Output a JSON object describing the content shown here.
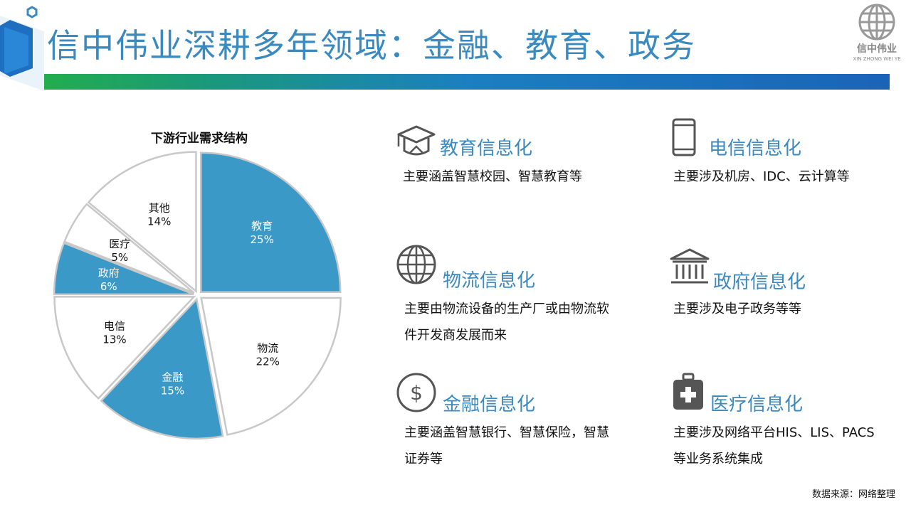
{
  "header": {
    "title": "信中伟业深耕多年领域：金融、教育、政务",
    "brand_name": "信中伟业",
    "brand_sub": "XIN ZHONG WEI YE"
  },
  "chart_data": {
    "type": "pie",
    "title": "下游行业需求结构",
    "categories": [
      "教育",
      "物流",
      "金融",
      "电信",
      "政府",
      "医疗",
      "其他"
    ],
    "values": [
      25,
      22,
      15,
      13,
      6,
      5,
      14
    ],
    "value_labels": [
      "25%",
      "22%",
      "15%",
      "13%",
      "6%",
      "5%",
      "14%"
    ],
    "colors": [
      "#3b99c7",
      "#ffffff",
      "#3b99c7",
      "#ffffff",
      "#3b99c7",
      "#ffffff",
      "#ffffff"
    ],
    "label_colors": [
      "#ffffff",
      "#111111",
      "#ffffff",
      "#111111",
      "#ffffff",
      "#111111",
      "#111111"
    ],
    "exploded": true,
    "start_angle": "12 o'clock, clockwise"
  },
  "features": [
    {
      "key": "education",
      "title": "教育信息化",
      "desc": [
        "主要涵盖智慧校园、智慧教育等"
      ],
      "icon": "graduation-cap-icon"
    },
    {
      "key": "telecom",
      "title": "电信信息化",
      "desc": [
        "主要涉及机房、IDC、云计算等"
      ],
      "icon": "mobile-phone-icon"
    },
    {
      "key": "logistics",
      "title": "物流信息化",
      "desc": [
        "主要由物流设备的生产厂或由物流软",
        "件开发商发展而来"
      ],
      "icon": "globe-icon"
    },
    {
      "key": "government",
      "title": "政府信息化",
      "desc": [
        "主要涉及电子政务等等"
      ],
      "icon": "government-building-icon"
    },
    {
      "key": "finance",
      "title": "金融信息化",
      "desc": [
        "主要涵盖智慧银行、智慧保险，智慧",
        "证券等"
      ],
      "icon": "dollar-icon"
    },
    {
      "key": "medical",
      "title": "医疗信息化",
      "desc": [
        "主要涉及网络平台HIS、LIS、PACS",
        "等业务系统集成"
      ],
      "icon": "medical-kit-icon"
    }
  ],
  "source": "数据来源：网络整理"
}
